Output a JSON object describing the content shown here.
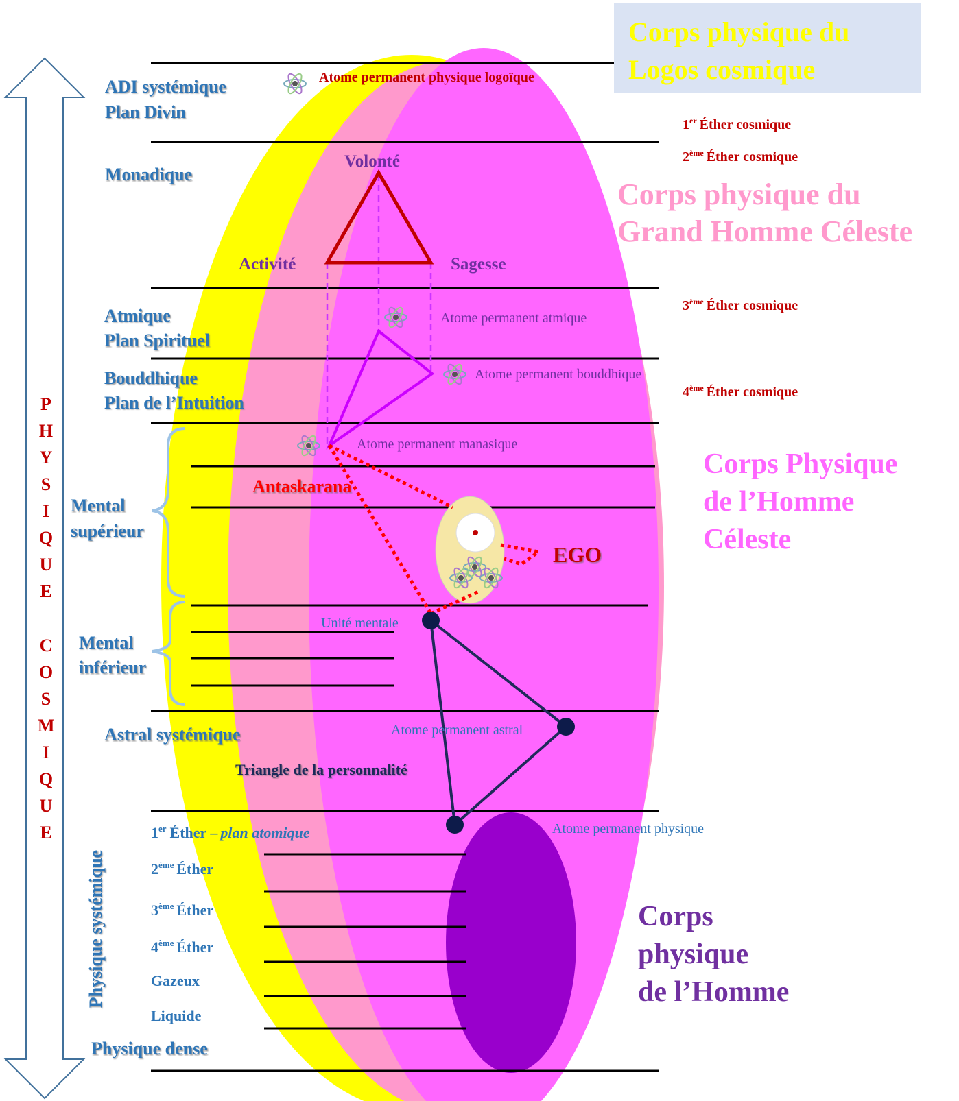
{
  "logos_box": {
    "line1": "Corps physique du",
    "line2": "Logos cosmique"
  },
  "vertical_arrow": {
    "word1": "PHYSIQUE",
    "word2": "COSMIQUE"
  },
  "planes": {
    "adi": "ADI systémique",
    "adi_sub": "Plan Divin",
    "monadique": "Monadique",
    "atmique": "Atmique",
    "atmique_sub": "Plan Spirituel",
    "bouddhique": "Bouddhique",
    "bouddhique_sub": "Plan de l’Intuition",
    "mental_sup_1": "Mental",
    "mental_sup_2": "supérieur",
    "mental_inf_1": "Mental",
    "mental_inf_2": "inférieur",
    "astral": "Astral systémique"
  },
  "physical": {
    "vertical": "Physique systémique",
    "ether1": {
      "num": "1",
      "sup": "er",
      "text": "Éther –",
      "italic": "plan atomique"
    },
    "ether2": {
      "num": "2",
      "sup": "ème",
      "text": "Éther"
    },
    "ether3": {
      "num": "3",
      "sup": "ème",
      "text": "Éther"
    },
    "ether4": {
      "num": "4",
      "sup": "ème",
      "text": "Éther"
    },
    "gazeux": "Gazeux",
    "liquide": "Liquide",
    "dense": "Physique dense"
  },
  "center": {
    "logoic_atom": "Atome permanent physique logoïque",
    "volonte": "Volonté",
    "activite": "Activité",
    "sagesse": "Sagesse",
    "atmic_atom": "Atome permanent atmique",
    "buddhic_atom": "Atome permanent bouddhique",
    "manasic_atom": "Atome permanent manasique",
    "antaskarana": "Antaskarana",
    "ego": "EGO",
    "mental_unit": "Unité mentale",
    "astral_atom": "Atome permanent astral",
    "personality": "Triangle de la personnalité",
    "physical_atom": "Atome permanent physique"
  },
  "cosmic_ethers": [
    {
      "num": "1",
      "sup": "er",
      "text": "Éther cosmique"
    },
    {
      "num": "2",
      "sup": "ème",
      "text": "Éther cosmique"
    },
    {
      "num": "3",
      "sup": "ème",
      "text": "Éther cosmique"
    },
    {
      "num": "4",
      "sup": "ème",
      "text": "Éther cosmique"
    }
  ],
  "bodies": {
    "grand_homme": [
      "Corps physique du",
      "Grand Homme Céleste"
    ],
    "homme_celeste": [
      "Corps Physique",
      "de l’Homme",
      "Céleste"
    ],
    "homme": [
      "Corps",
      "physique",
      "de l’Homme"
    ]
  }
}
